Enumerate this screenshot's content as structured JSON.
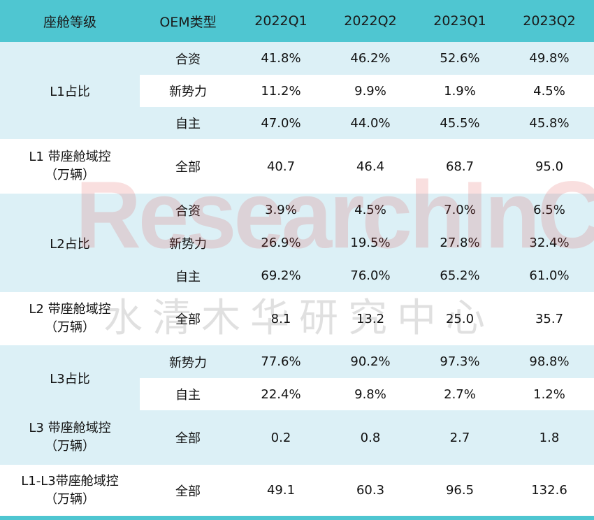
{
  "header": [
    "座舱等级",
    "OEM类型",
    "2022Q1",
    "2022Q2",
    "2023Q1",
    "2023Q2"
  ],
  "groups": {
    "l1_share": {
      "label": "L1占比",
      "rows": [
        {
          "type": "合资",
          "values": [
            "41.8%",
            "46.2%",
            "52.6%",
            "49.8%"
          ]
        },
        {
          "type": "新势力",
          "values": [
            "11.2%",
            "9.9%",
            "1.9%",
            "4.5%"
          ]
        },
        {
          "type": "自主",
          "values": [
            "47.0%",
            "44.0%",
            "45.5%",
            "45.8%"
          ]
        }
      ]
    },
    "l1_volume": {
      "label_line1": "L1 带座舱域控",
      "label_line2": "（万辆）",
      "type": "全部",
      "values": [
        "40.7",
        "46.4",
        "68.7",
        "95.0"
      ]
    },
    "l2_share": {
      "label": "L2占比",
      "rows": [
        {
          "type": "合资",
          "values": [
            "3.9%",
            "4.5%",
            "7.0%",
            "6.5%"
          ]
        },
        {
          "type": "新势力",
          "values": [
            "26.9%",
            "19.5%",
            "27.8%",
            "32.4%"
          ]
        },
        {
          "type": "自主",
          "values": [
            "69.2%",
            "76.0%",
            "65.2%",
            "61.0%"
          ]
        }
      ]
    },
    "l2_volume": {
      "label_line1": "L2 带座舱域控",
      "label_line2": "（万辆）",
      "type": "全部",
      "values": [
        "8.1",
        "13.2",
        "25.0",
        "35.7"
      ]
    },
    "l3_share": {
      "label": "L3占比",
      "rows": [
        {
          "type": "新势力",
          "values": [
            "77.6%",
            "90.2%",
            "97.3%",
            "98.8%"
          ]
        },
        {
          "type": "自主",
          "values": [
            "22.4%",
            "9.8%",
            "2.7%",
            "1.2%"
          ]
        }
      ]
    },
    "l3_volume": {
      "label_line1": "L3 带座舱域控",
      "label_line2": "（万辆）",
      "type": "全部",
      "values": [
        "0.2",
        "0.8",
        "2.7",
        "1.8"
      ]
    },
    "total_volume": {
      "label_line1": "L1-L3带座舱域控",
      "label_line2": "（万辆）",
      "type": "全部",
      "values": [
        "49.1",
        "60.3",
        "96.5",
        "132.6"
      ]
    }
  },
  "watermark": {
    "en": "ResearchInChina",
    "cn": "水清木华研究中心"
  }
}
